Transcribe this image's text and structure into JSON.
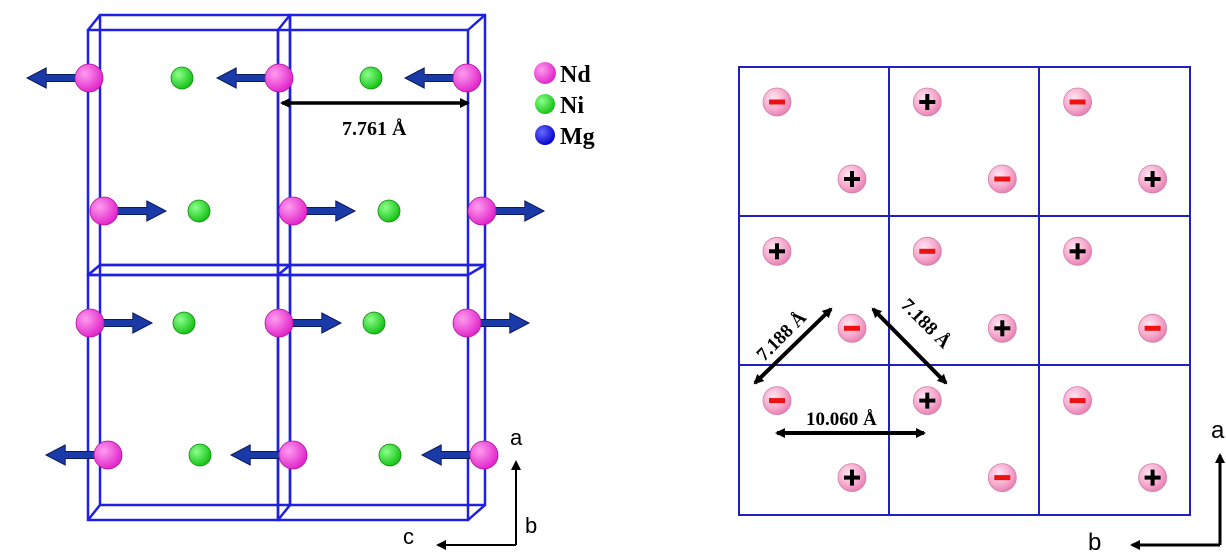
{
  "left_panel": {
    "legend": [
      {
        "label": "Nd",
        "color": "#f040d8"
      },
      {
        "label": "Ni",
        "color": "#22dd22"
      },
      {
        "label": "Mg",
        "color": "#1111dd"
      }
    ],
    "distance_label": "7.761 Å",
    "axes": {
      "up": "a",
      "left": "c",
      "out": "b"
    },
    "frame_color": "#2020e0",
    "arrow_color": "#1a3aa8"
  },
  "right_panel": {
    "grid_rows": 3,
    "grid_cols": 3,
    "plus_symbol": "+",
    "minus_symbol": "−",
    "distance_labels": {
      "diag_left": "7.188 Å",
      "diag_right": "7.188 Å",
      "horizontal": "10.060 Å"
    },
    "axes": {
      "up": "a",
      "left": "b"
    },
    "sphere_color": "#f4a8cc",
    "minus_color": "#ee1111",
    "grid_color": "#2020c0"
  }
}
